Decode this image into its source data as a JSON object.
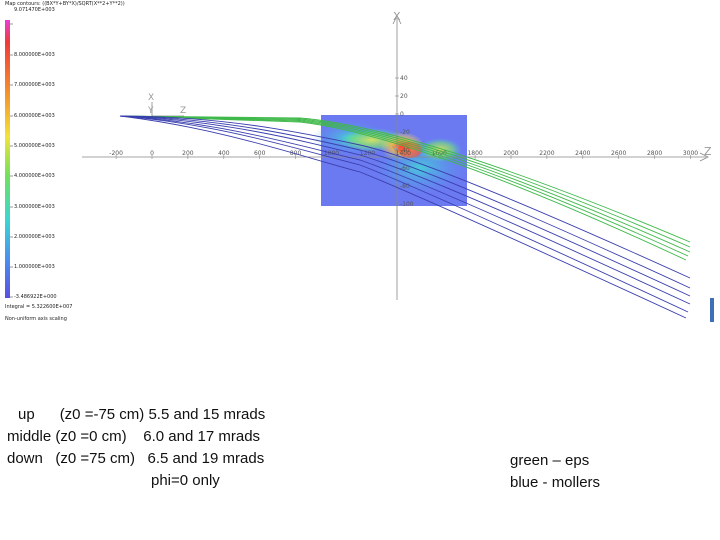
{
  "colors": {
    "eps": "#3fb94a",
    "mollers": "#3a3fae",
    "map_background": "#5c6cf0",
    "axis": "#888888"
  },
  "legend": {
    "title": "Map contours: ((BX*Y+BY*X)/SQRT(X**2+Y**2))",
    "levels": [
      "9.071470E+003",
      "8.000000E+003",
      "7.000000E+003",
      "6.000000E+003",
      "5.000000E+003",
      "4.000000E+003",
      "3.000000E+003",
      "2.000000E+003",
      "1.000000E+003",
      "-3.486922E+000"
    ],
    "integral": "Integral = 5.322600E+007",
    "scaling": "Non-uniform axis scaling"
  },
  "axes": {
    "z_ticks": [
      "-200",
      "0",
      "200",
      "400",
      "600",
      "800",
      "1000",
      "1200",
      "1400",
      "1600",
      "1800",
      "2000",
      "2200",
      "2400",
      "2600",
      "2800",
      "3000"
    ],
    "x_ticks": [
      "40",
      "20",
      "0",
      "-20",
      "-40",
      "-60",
      "-80",
      "-100"
    ],
    "x_label": "X",
    "z_label": "Z",
    "y_label": "Y",
    "triad": [
      "X",
      "Y",
      "Z"
    ]
  },
  "caption": {
    "up": "up      (z0 =-75 cm) 5.5 and 15 mrads",
    "middle": "middle (z0 =0 cm)    6.0 and 17 mrads",
    "down": "down   (z0 =75 cm)   6.5 and 19 mrads",
    "note": "phi=0 only"
  },
  "key": {
    "green": "green – eps",
    "blue": "blue - mollers"
  }
}
